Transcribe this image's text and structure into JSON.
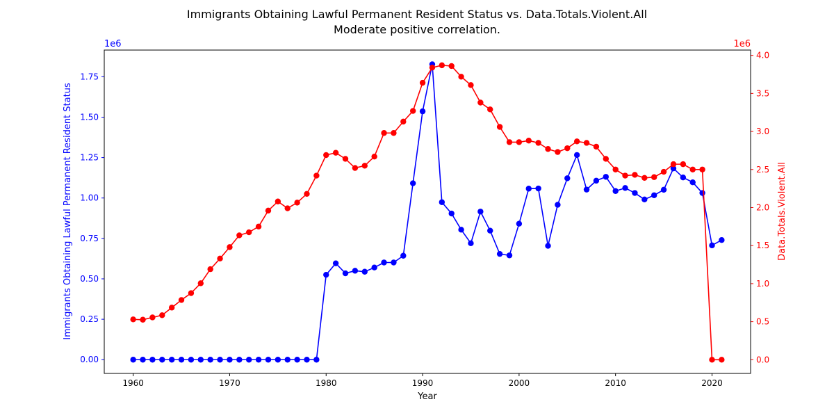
{
  "chart_data": {
    "type": "line",
    "title": "Immigrants Obtaining Lawful Permanent Resident Status vs. Data.Totals.Violent.All",
    "subtitle": "Moderate positive correlation.",
    "xlabel": "Year",
    "ylabel_left": "Immigrants Obtaining Lawful Permanent Resident Status",
    "ylabel_right": "Data.Totals.Violent.All",
    "left_offset_label": "1e6",
    "right_offset_label": "1e6",
    "xlim": [
      1957,
      2024
    ],
    "ylim_left": [
      -85000,
      1915000
    ],
    "ylim_right": [
      -180000,
      4070000
    ],
    "x_ticks": [
      1960,
      1970,
      1980,
      1990,
      2000,
      2010,
      2020
    ],
    "y_ticks_left": [
      0,
      250000,
      500000,
      750000,
      1000000,
      1250000,
      1500000,
      1750000
    ],
    "y_ticks_left_labels": [
      "0.00",
      "0.25",
      "0.50",
      "0.75",
      "1.00",
      "1.25",
      "1.50",
      "1.75"
    ],
    "y_ticks_right": [
      0,
      500000,
      1000000,
      1500000,
      2000000,
      2500000,
      3000000,
      3500000,
      4000000
    ],
    "y_ticks_right_labels": [
      "0.0",
      "0.5",
      "1.0",
      "1.5",
      "2.0",
      "2.5",
      "3.0",
      "3.5",
      "4.0"
    ],
    "grid": false,
    "legend": "none",
    "colors": {
      "left": "#0000ff",
      "right": "#ff0000",
      "axis": "#000000"
    },
    "x": [
      1960,
      1961,
      1962,
      1963,
      1964,
      1965,
      1966,
      1967,
      1968,
      1969,
      1970,
      1971,
      1972,
      1973,
      1974,
      1975,
      1976,
      1977,
      1978,
      1979,
      1980,
      1981,
      1982,
      1983,
      1984,
      1985,
      1986,
      1987,
      1988,
      1989,
      1990,
      1991,
      1992,
      1993,
      1994,
      1995,
      1996,
      1997,
      1998,
      1999,
      2000,
      2001,
      2002,
      2003,
      2004,
      2005,
      2006,
      2007,
      2008,
      2009,
      2010,
      2011,
      2012,
      2013,
      2014,
      2015,
      2016,
      2017,
      2018,
      2019,
      2020,
      2021
    ],
    "series": [
      {
        "axis": "left",
        "color": "#0000ff",
        "values": [
          0,
          0,
          0,
          0,
          0,
          0,
          0,
          0,
          0,
          0,
          0,
          0,
          0,
          0,
          0,
          0,
          0,
          0,
          0,
          0,
          525000,
          596000,
          534000,
          550000,
          544000,
          570000,
          601000,
          601000,
          643000,
          1091000,
          1536000,
          1827000,
          974000,
          904000,
          804000,
          720000,
          916000,
          798000,
          654000,
          645000,
          841000,
          1058000,
          1059000,
          704000,
          958000,
          1122000,
          1266000,
          1052000,
          1107000,
          1131000,
          1043000,
          1062000,
          1031000,
          991000,
          1017000,
          1051000,
          1183000,
          1127000,
          1097000,
          1031000,
          707000,
          740000
        ]
      },
      {
        "axis": "right",
        "color": "#ff0000",
        "values": [
          530000,
          526000,
          556000,
          585000,
          685000,
          785000,
          875000,
          1005000,
          1190000,
          1330000,
          1480000,
          1635000,
          1675000,
          1750000,
          1960000,
          2080000,
          1990000,
          2065000,
          2180000,
          2420000,
          2690000,
          2720000,
          2640000,
          2520000,
          2550000,
          2670000,
          2980000,
          2980000,
          3130000,
          3270000,
          3640000,
          3840000,
          3870000,
          3860000,
          3720000,
          3610000,
          3380000,
          3290000,
          3060000,
          2860000,
          2860000,
          2880000,
          2850000,
          2770000,
          2730000,
          2780000,
          2870000,
          2850000,
          2800000,
          2640000,
          2500000,
          2420000,
          2430000,
          2390000,
          2400000,
          2470000,
          2570000,
          2570000,
          2500000,
          2500000,
          0,
          0
        ]
      }
    ]
  }
}
